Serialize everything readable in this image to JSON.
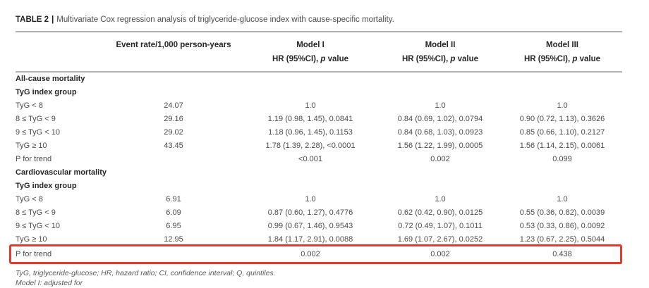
{
  "caption": {
    "label": "TABLE 2",
    "separator": "|",
    "text": "Multivariate Cox regression analysis of triglyceride-glucose index with cause-specific mortality."
  },
  "accent_red": "#e6392b",
  "rule_gray": "#b3b3b3",
  "table": {
    "columns": {
      "event_rate": "Event rate/1,000 person-years",
      "model1": "Model I",
      "model2": "Model II",
      "model3": "Model III"
    },
    "subheader": {
      "hr_prefix": "HR (95%CI), ",
      "p_italic": "p",
      "value_suffix": " value"
    },
    "rows": [
      {
        "label": "All-cause mortality",
        "bold": true,
        "highlight": false,
        "cells": [
          "",
          "",
          "",
          ""
        ]
      },
      {
        "label": "TyG index group",
        "bold": true,
        "highlight": false,
        "cells": [
          "",
          "",
          "",
          ""
        ]
      },
      {
        "label": "TyG < 8",
        "bold": false,
        "highlight": false,
        "cells": [
          "24.07",
          "1.0",
          "1.0",
          "1.0"
        ]
      },
      {
        "label": "8 ≤ TyG < 9",
        "bold": false,
        "highlight": false,
        "cells": [
          "29.16",
          "1.19 (0.98, 1.45), 0.0841",
          "0.84 (0.69, 1.02), 0.0794",
          "0.90 (0.72, 1.13), 0.3626"
        ]
      },
      {
        "label": "9 ≤ TyG < 10",
        "bold": false,
        "highlight": false,
        "cells": [
          "29.02",
          "1.18 (0.96, 1.45), 0.1153",
          "0.84 (0.68, 1.03), 0.0923",
          "0.85 (0.66, 1.10), 0.2127"
        ]
      },
      {
        "label": "TyG ≥ 10",
        "bold": false,
        "highlight": false,
        "cells": [
          "43.45",
          "1.78 (1.39, 2.28), <0.0001",
          "1.56 (1.22, 1.99), 0.0005",
          "1.56 (1.14, 2.15), 0.0061"
        ]
      },
      {
        "label": "P for trend",
        "bold": false,
        "highlight": false,
        "cells": [
          "",
          "<0.001",
          "0.002",
          "0.099"
        ]
      },
      {
        "label": "Cardiovascular mortality",
        "bold": true,
        "highlight": false,
        "cells": [
          "",
          "",
          "",
          ""
        ]
      },
      {
        "label": "TyG index group",
        "bold": true,
        "highlight": false,
        "cells": [
          "",
          "",
          "",
          ""
        ]
      },
      {
        "label": "TyG < 8",
        "bold": false,
        "highlight": false,
        "cells": [
          "6.91",
          "1.0",
          "1.0",
          "1.0"
        ]
      },
      {
        "label": "8 ≤ TyG < 9",
        "bold": false,
        "highlight": false,
        "cells": [
          "6.09",
          "0.87 (0.60, 1.27), 0.4776",
          "0.62 (0.42, 0.90), 0.0125",
          "0.55 (0.36, 0.82), 0.0039"
        ]
      },
      {
        "label": "9 ≤ TyG < 10",
        "bold": false,
        "highlight": false,
        "cells": [
          "6.95",
          "0.99 (0.67, 1.46), 0.9543",
          "0.72 (0.49, 1.07), 0.1011",
          "0.53 (0.33, 0.86), 0.0092"
        ]
      },
      {
        "label": "TyG ≥ 10",
        "bold": false,
        "highlight": false,
        "cells": [
          "12.95",
          "1.84 (1.17, 2.91), 0.0088",
          "1.69 (1.07, 2.67), 0.0252",
          "1.23 (0.67, 2.25), 0.5044"
        ]
      },
      {
        "label": "P for trend",
        "bold": false,
        "highlight": true,
        "cells": [
          "",
          "0.002",
          "0.002",
          "0.438"
        ]
      }
    ]
  },
  "footnotes": [
    "TyG, triglyceride-glucose; HR, hazard ratio; CI, confidence interval; Q, quintiles.",
    "Model I: adjusted for"
  ]
}
